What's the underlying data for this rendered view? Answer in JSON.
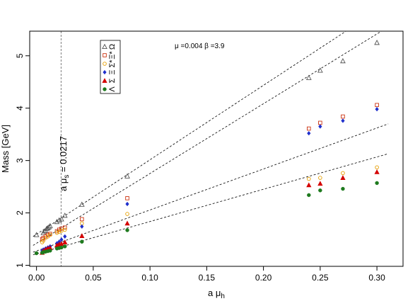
{
  "chart_data": {
    "type": "scatter",
    "xlabel": "a μ",
    "xlabel_sub": "h",
    "ylabel": "Mass [GeV]",
    "xlim": [
      -0.006,
      0.323
    ],
    "ylim": [
      0.98,
      5.47
    ],
    "xticks": [
      0.0,
      0.05,
      0.1,
      0.15,
      0.2,
      0.25,
      0.3
    ],
    "xtick_labels": [
      "0.00",
      "0.05",
      "0.10",
      "0.15",
      "0.20",
      "0.25",
      "0.30"
    ],
    "yticks": [
      1,
      2,
      3,
      4,
      5
    ],
    "ytick_labels": [
      "1",
      "2",
      "3",
      "4",
      "5"
    ],
    "grid": false,
    "legend_position": "upper-left",
    "annotation": "μ =0.004 β =3.9",
    "vline": {
      "x": 0.0217,
      "label": "a μ",
      "label_sub": "s",
      "label_tail": " = 0.0217"
    },
    "fit_lines": [
      {
        "x": [
          -0.003,
          0.31
        ],
        "y": [
          1.55,
          6.0
        ]
      },
      {
        "x": [
          -0.003,
          0.31
        ],
        "y": [
          1.38,
          5.55
        ]
      },
      {
        "x": [
          -0.003,
          0.31
        ],
        "y": [
          1.25,
          3.7
        ]
      },
      {
        "x": [
          -0.003,
          0.31
        ],
        "y": [
          1.2,
          3.13
        ]
      }
    ],
    "series": [
      {
        "name": "Ω",
        "marker": "triangle-open",
        "color": "#555555",
        "x": [
          0.0,
          0.006,
          0.007,
          0.008,
          0.009,
          0.01,
          0.011,
          0.012,
          0.018,
          0.02,
          0.022,
          0.025,
          0.04,
          0.08,
          0.24,
          0.25,
          0.27,
          0.3
        ],
        "y": [
          1.58,
          1.62,
          1.65,
          1.66,
          1.7,
          1.71,
          1.73,
          1.75,
          1.83,
          1.86,
          1.88,
          1.95,
          2.16,
          2.7,
          4.58,
          4.72,
          4.9,
          5.25
        ]
      },
      {
        "name": "Ξ*",
        "marker": "square-open",
        "color": "#cc3311",
        "x": [
          0.005,
          0.006,
          0.008,
          0.01,
          0.012,
          0.018,
          0.02,
          0.022,
          0.025,
          0.04,
          0.08,
          0.24,
          0.25,
          0.27,
          0.3
        ],
        "y": [
          1.5,
          1.52,
          1.55,
          1.58,
          1.6,
          1.65,
          1.68,
          1.7,
          1.72,
          1.88,
          2.28,
          3.61,
          3.72,
          3.84,
          4.06
        ]
      },
      {
        "name": "Σ*",
        "marker": "circle-open",
        "color": "#e69f00",
        "x": [
          0.005,
          0.006,
          0.008,
          0.01,
          0.012,
          0.018,
          0.02,
          0.022,
          0.025,
          0.04,
          0.08,
          0.24,
          0.25,
          0.27,
          0.3
        ],
        "y": [
          1.44,
          1.47,
          1.52,
          1.55,
          1.58,
          1.62,
          1.64,
          1.66,
          1.68,
          1.8,
          1.98,
          2.65,
          2.67,
          2.76,
          2.87
        ]
      },
      {
        "name": "Ξ",
        "marker": "diamond-filled",
        "color": "#1f2fcc",
        "x": [
          0.005,
          0.006,
          0.008,
          0.01,
          0.012,
          0.018,
          0.02,
          0.022,
          0.025,
          0.04,
          0.08,
          0.24,
          0.25,
          0.27,
          0.3
        ],
        "y": [
          1.28,
          1.3,
          1.32,
          1.34,
          1.36,
          1.42,
          1.45,
          1.49,
          1.55,
          1.74,
          2.17,
          3.52,
          3.65,
          3.76,
          3.98
        ]
      },
      {
        "name": "Σ",
        "marker": "triangle-filled",
        "color": "#d40000",
        "x": [
          0.005,
          0.006,
          0.008,
          0.01,
          0.012,
          0.018,
          0.02,
          0.022,
          0.025,
          0.04,
          0.08,
          0.24,
          0.25,
          0.27,
          0.3
        ],
        "y": [
          1.24,
          1.27,
          1.3,
          1.32,
          1.33,
          1.38,
          1.4,
          1.41,
          1.44,
          1.56,
          1.8,
          2.53,
          2.56,
          2.67,
          2.78
        ]
      },
      {
        "name": "Λ",
        "marker": "circle-filled",
        "color": "#1e7a1e",
        "x": [
          0.0,
          0.005,
          0.006,
          0.008,
          0.01,
          0.012,
          0.018,
          0.02,
          0.022,
          0.025,
          0.04,
          0.08,
          0.24,
          0.25,
          0.27,
          0.3
        ],
        "y": [
          1.23,
          1.24,
          1.25,
          1.26,
          1.27,
          1.28,
          1.32,
          1.33,
          1.34,
          1.36,
          1.45,
          1.67,
          2.34,
          2.43,
          2.46,
          2.57
        ]
      }
    ]
  }
}
